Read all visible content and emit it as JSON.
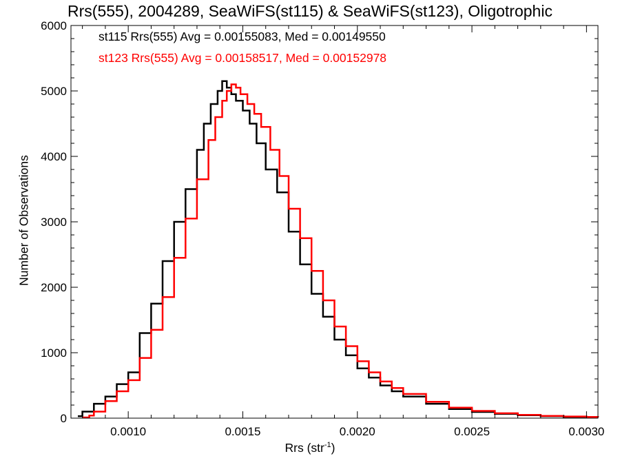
{
  "chart_data": {
    "type": "histogram-step",
    "title": "Rrs(555), 2004289, SeaWiFS(st115) & SeaWiFS(st123), Oligotrophic",
    "xlabel": "Rrs (str",
    "xlabel_sup": "-1",
    "xlabel_suffix": ")",
    "ylabel": "Number of Observations",
    "xlim": [
      0.00075,
      0.00305
    ],
    "ylim": [
      0,
      6000
    ],
    "xticks": [
      0.001,
      0.0015,
      0.002,
      0.0025,
      0.003
    ],
    "xtick_labels": [
      "0.0010",
      "0.0015",
      "0.0020",
      "0.0025",
      "0.0030"
    ],
    "yticks": [
      0,
      1000,
      2000,
      3000,
      4000,
      5000,
      6000
    ],
    "ytick_labels": [
      "0",
      "1000",
      "2000",
      "3000",
      "4000",
      "5000",
      "6000"
    ],
    "grid": false,
    "legend_placement": "top-left",
    "series": [
      {
        "legend": "st115 Rrs(555) Avg = 0.00155083, Med = 0.00149550",
        "color": "#000000",
        "x": [
          0.00078,
          0.0008,
          0.00085,
          0.0009,
          0.00095,
          0.001,
          0.00105,
          0.0011,
          0.00115,
          0.0012,
          0.00125,
          0.0013,
          0.00133,
          0.00136,
          0.00139,
          0.00141,
          0.00143,
          0.00145,
          0.00147,
          0.0015,
          0.00153,
          0.00156,
          0.0016,
          0.00165,
          0.0017,
          0.00175,
          0.0018,
          0.00185,
          0.0019,
          0.00195,
          0.002,
          0.00205,
          0.0021,
          0.00215,
          0.0022,
          0.0023,
          0.0024,
          0.0025,
          0.0026,
          0.0027,
          0.0028,
          0.0029,
          0.003,
          0.00305
        ],
        "y": [
          30,
          100,
          220,
          330,
          520,
          700,
          1300,
          1750,
          2400,
          3000,
          3500,
          4100,
          4500,
          4800,
          5000,
          5150,
          5050,
          4950,
          4850,
          4700,
          4500,
          4200,
          3800,
          3450,
          2850,
          2350,
          1900,
          1550,
          1200,
          960,
          760,
          620,
          500,
          410,
          330,
          220,
          140,
          95,
          65,
          45,
          30,
          20,
          15,
          12
        ]
      },
      {
        "legend": "st123 Rrs(555) Avg = 0.00158517, Med = 0.00152978",
        "color": "#ff0000",
        "x": [
          0.0008,
          0.00083,
          0.00085,
          0.0009,
          0.00095,
          0.001,
          0.00105,
          0.0011,
          0.00115,
          0.0012,
          0.00125,
          0.0013,
          0.00135,
          0.00138,
          0.00141,
          0.00143,
          0.00145,
          0.00147,
          0.00149,
          0.00152,
          0.00155,
          0.00158,
          0.00162,
          0.00166,
          0.0017,
          0.00175,
          0.0018,
          0.00185,
          0.0019,
          0.00195,
          0.002,
          0.00205,
          0.0021,
          0.00215,
          0.0022,
          0.0023,
          0.0024,
          0.0025,
          0.0026,
          0.0027,
          0.0028,
          0.0029,
          0.003,
          0.00305
        ],
        "y": [
          10,
          40,
          100,
          260,
          410,
          580,
          920,
          1350,
          1850,
          2450,
          3050,
          3650,
          4250,
          4600,
          4850,
          5000,
          5100,
          5050,
          4950,
          4800,
          4650,
          4450,
          4100,
          3700,
          3200,
          2750,
          2250,
          1800,
          1400,
          1100,
          870,
          700,
          560,
          460,
          370,
          250,
          160,
          110,
          75,
          50,
          35,
          25,
          18,
          15
        ]
      }
    ]
  }
}
